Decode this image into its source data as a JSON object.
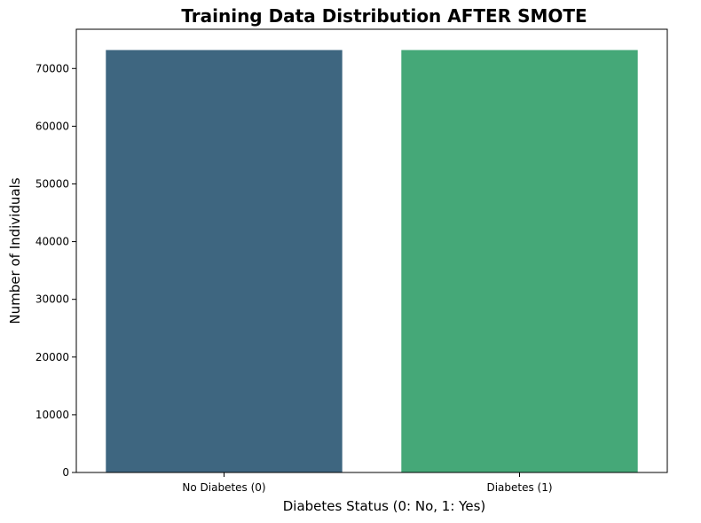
{
  "chart_data": {
    "type": "bar",
    "title": "Training Data Distribution AFTER SMOTE",
    "xlabel": "Diabetes Status (0: No, 1: Yes)",
    "ylabel": "Number of Individuals",
    "categories": [
      "No Diabetes (0)",
      "Diabetes (1)"
    ],
    "values": [
      73200,
      73200
    ],
    "colors": [
      "#3e6680",
      "#45a878"
    ],
    "ylim": [
      0,
      76800
    ],
    "yticks": [
      0,
      10000,
      20000,
      30000,
      40000,
      50000,
      60000,
      70000
    ],
    "ytick_labels": [
      "0",
      "10000",
      "20000",
      "30000",
      "40000",
      "50000",
      "60000",
      "70000"
    ],
    "grid": false,
    "legend": "none"
  }
}
